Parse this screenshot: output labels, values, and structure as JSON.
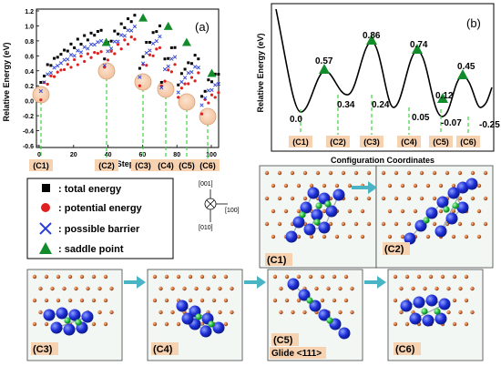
{
  "panel_a": {
    "label": "(a)",
    "ylabel": "Relative Energy (eV)",
    "xlabel": "Steps",
    "yticks": [
      "1.2",
      "1.0",
      "0.8",
      "0.6",
      "0.4",
      "0.2",
      "0.0",
      "-0.2",
      "-0.4",
      "-0.6"
    ],
    "xticks": [
      "0",
      "20",
      "40",
      "60",
      "80",
      "100"
    ],
    "config_labels": [
      "(C1)",
      "(C2)",
      "(C3)",
      "(C4)",
      "(C5)",
      "(C6)"
    ]
  },
  "panel_b": {
    "label": "(b)",
    "ylabel": "Relative Energy (eV)",
    "xlabel": "Configuration Coordinates",
    "minima_labels": [
      "0.0",
      "0.34",
      "0.24",
      "0.05",
      "-0.07",
      "-0.25"
    ],
    "saddle_labels": [
      "0.57",
      "0.86",
      "0.74",
      "0.45",
      "0.12"
    ],
    "config_labels": [
      "(C1)",
      "(C2)",
      "(C3)",
      "(C4)",
      "(C5)",
      "(C6)"
    ]
  },
  "legend": {
    "total": ": total energy",
    "potential": ": potential energy",
    "barrier": ": possible barrier",
    "saddle": ": saddle point"
  },
  "axes_glyph": {
    "top": "[001]",
    "right": "[100]",
    "bottom": "[010]"
  },
  "snapshots": {
    "c1": "(C1)",
    "c2": "(C2)",
    "c3": "(C3)",
    "c4": "(C4)",
    "c5": "(C5)",
    "c5_sub": "Glide <111>",
    "c6": "(C6)"
  },
  "colors": {
    "total": "#000000",
    "potential": "#e02020",
    "barrier": "#2a3fd6",
    "saddle": "#128c2a",
    "guide": "#3cd43c",
    "label_bg": "#f6d2b0",
    "atom_blue": "#1d2fd6",
    "atom_green": "#19b535",
    "atom_orange": "#c8642a",
    "arrow": "#48b4c4"
  }
}
